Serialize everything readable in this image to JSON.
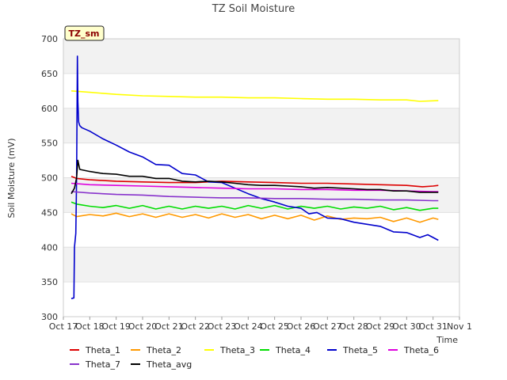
{
  "chart_data": {
    "type": "line",
    "title": "TZ Soil Moisture",
    "xlabel": "Time",
    "ylabel": "Soil Moisture (mV)",
    "badge": "TZ_sm",
    "xlim": [
      0,
      15
    ],
    "ylim": [
      300,
      700
    ],
    "yticks": [
      300,
      350,
      400,
      450,
      500,
      550,
      600,
      650,
      700
    ],
    "xticks": [
      {
        "x": 0,
        "label": "Oct 17"
      },
      {
        "x": 1,
        "label": "Oct 18"
      },
      {
        "x": 2,
        "label": "Oct 19"
      },
      {
        "x": 3,
        "label": "Oct 20"
      },
      {
        "x": 4,
        "label": "Oct 21"
      },
      {
        "x": 5,
        "label": "Oct 22"
      },
      {
        "x": 6,
        "label": "Oct 23"
      },
      {
        "x": 7,
        "label": "Oct 24"
      },
      {
        "x": 8,
        "label": "Oct 25"
      },
      {
        "x": 9,
        "label": "Oct 26"
      },
      {
        "x": 10,
        "label": "Oct 27"
      },
      {
        "x": 11,
        "label": "Oct 28"
      },
      {
        "x": 12,
        "label": "Oct 29"
      },
      {
        "x": 13,
        "label": "Oct 30"
      },
      {
        "x": 14,
        "label": "Oct 31"
      },
      {
        "x": 15,
        "label": "Nov 1"
      }
    ],
    "series": [
      {
        "name": "Theta_1",
        "color": "#dd0000",
        "x": [
          0.3,
          0.5,
          1.0,
          2.0,
          3.0,
          4.0,
          5.0,
          6.0,
          7.0,
          8.0,
          9.0,
          10.0,
          11.0,
          12.0,
          13.0,
          13.6,
          14.0,
          14.2
        ],
        "y": [
          502,
          499,
          497,
          495,
          494,
          493,
          493,
          495,
          494,
          493,
          492,
          492,
          491,
          490,
          489,
          487,
          488,
          489
        ]
      },
      {
        "name": "Theta_2",
        "color": "#ff9900",
        "x": [
          0.3,
          0.5,
          1.0,
          1.5,
          2.0,
          2.5,
          3.0,
          3.5,
          4.0,
          4.5,
          5.0,
          5.5,
          6.0,
          6.5,
          7.0,
          7.5,
          8.0,
          8.5,
          9.0,
          9.5,
          10.0,
          10.5,
          11.0,
          11.5,
          12.0,
          12.5,
          13.0,
          13.5,
          14.0,
          14.2
        ],
        "y": [
          448,
          444,
          447,
          445,
          449,
          444,
          448,
          443,
          448,
          443,
          447,
          442,
          448,
          443,
          447,
          441,
          446,
          441,
          446,
          439,
          445,
          440,
          442,
          441,
          443,
          437,
          442,
          436,
          442,
          440
        ]
      },
      {
        "name": "Theta_3",
        "color": "#ffff00",
        "x": [
          0.3,
          1.0,
          2.0,
          3.0,
          4.0,
          5.0,
          6.0,
          7.0,
          8.0,
          9.0,
          10.0,
          11.0,
          12.0,
          13.0,
          13.5,
          14.2
        ],
        "y": [
          625,
          623,
          620,
          618,
          617,
          616,
          616,
          615,
          615,
          614,
          613,
          613,
          612,
          612,
          610,
          611
        ]
      },
      {
        "name": "Theta_4",
        "color": "#00dd00",
        "x": [
          0.3,
          0.5,
          1.0,
          1.5,
          2.0,
          2.5,
          3.0,
          3.5,
          4.0,
          4.5,
          5.0,
          5.5,
          6.0,
          6.5,
          7.0,
          7.5,
          8.0,
          8.5,
          9.0,
          9.5,
          10.0,
          10.5,
          11.0,
          11.5,
          12.0,
          12.5,
          13.0,
          13.5,
          14.0,
          14.2
        ],
        "y": [
          465,
          462,
          459,
          457,
          460,
          456,
          460,
          455,
          459,
          455,
          459,
          456,
          459,
          455,
          460,
          456,
          460,
          455,
          459,
          456,
          459,
          455,
          458,
          456,
          459,
          454,
          457,
          453,
          456,
          456
        ]
      },
      {
        "name": "Theta_5",
        "color": "#0000cc",
        "x": [
          0.3,
          0.4,
          0.42,
          0.47,
          0.5,
          0.53,
          0.55,
          0.58,
          0.62,
          0.7,
          1.0,
          1.5,
          2.0,
          2.5,
          3.0,
          3.5,
          4.0,
          4.5,
          5.0,
          5.5,
          6.0,
          6.5,
          7.0,
          7.5,
          8.0,
          8.5,
          9.0,
          9.3,
          9.6,
          10.0,
          10.5,
          11.0,
          11.5,
          12.0,
          12.5,
          13.0,
          13.5,
          13.8,
          14.0,
          14.2
        ],
        "y": [
          326,
          327,
          400,
          420,
          500,
          675,
          610,
          580,
          575,
          572,
          567,
          556,
          547,
          537,
          530,
          519,
          518,
          506,
          504,
          494,
          493,
          485,
          477,
          470,
          465,
          459,
          456,
          448,
          450,
          442,
          441,
          436,
          433,
          430,
          422,
          421,
          414,
          418,
          414,
          410
        ]
      },
      {
        "name": "Theta_6",
        "color": "#dd00dd",
        "x": [
          0.3,
          1.0,
          2.0,
          3.0,
          4.0,
          5.0,
          6.0,
          7.0,
          8.0,
          9.0,
          10.0,
          11.0,
          12.0,
          13.0,
          14.0,
          14.2
        ],
        "y": [
          492,
          490,
          489,
          488,
          487,
          486,
          485,
          484,
          484,
          483,
          483,
          482,
          482,
          481,
          480,
          480
        ]
      },
      {
        "name": "Theta_7",
        "color": "#8833cc",
        "x": [
          0.3,
          1.0,
          2.0,
          3.0,
          4.0,
          5.0,
          6.0,
          7.0,
          8.0,
          9.0,
          10.0,
          11.0,
          12.0,
          13.0,
          14.0,
          14.2
        ],
        "y": [
          480,
          478,
          476,
          475,
          473,
          472,
          471,
          471,
          470,
          470,
          469,
          469,
          468,
          468,
          467,
          467
        ]
      },
      {
        "name": "Theta_avg",
        "color": "#000000",
        "x": [
          0.3,
          0.42,
          0.5,
          0.55,
          0.62,
          1.0,
          1.5,
          2.0,
          2.5,
          3.0,
          3.5,
          4.0,
          4.5,
          5.0,
          5.5,
          6.0,
          6.5,
          7.0,
          7.5,
          8.0,
          8.5,
          9.0,
          9.5,
          10.0,
          10.5,
          11.0,
          11.5,
          12.0,
          12.5,
          13.0,
          13.5,
          14.0,
          14.2
        ],
        "y": [
          477,
          485,
          500,
          525,
          512,
          509,
          506,
          505,
          502,
          502,
          499,
          499,
          495,
          494,
          495,
          494,
          492,
          490,
          489,
          489,
          488,
          487,
          485,
          486,
          485,
          484,
          483,
          483,
          481,
          481,
          479,
          479,
          479
        ]
      }
    ],
    "legend": [
      "Theta_1",
      "Theta_2",
      "Theta_3",
      "Theta_4",
      "Theta_5",
      "Theta_6",
      "Theta_7",
      "Theta_avg"
    ]
  }
}
